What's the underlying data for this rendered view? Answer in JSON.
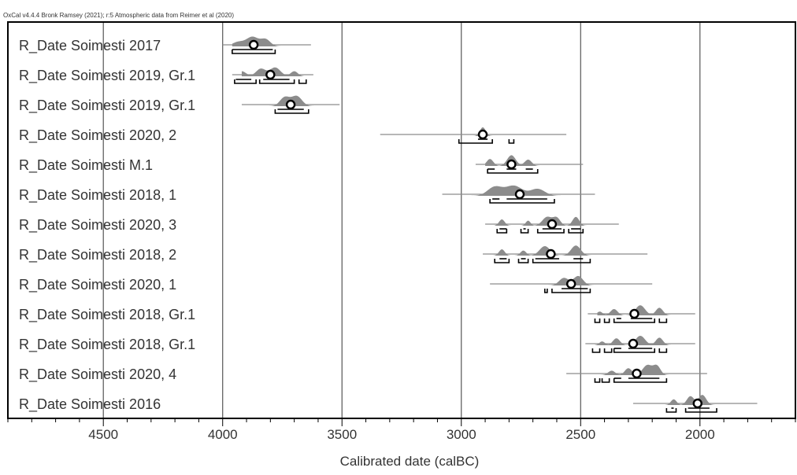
{
  "chart_data": {
    "type": "oxcal-multiplot",
    "credit": "OxCal v4.4.4 Bronk Ramsey (2021); r:5 Atmospheric data from Reimer et al (2020)",
    "xlabel": "Calibrated date (calBC)",
    "xlim": [
      4900,
      1600
    ],
    "x_ticks": [
      4500,
      4000,
      3500,
      3000,
      2500,
      2000
    ],
    "x_minor_step": 100,
    "grid_x": [
      4500,
      4000,
      3500,
      3000,
      2500,
      2000
    ],
    "colors": {
      "distribution": "#8c8c8c",
      "line": "#8c8c8c",
      "bracket": "#000000",
      "grid": "#555555"
    },
    "series": [
      {
        "label": "R_Date Soimesti 2017",
        "range": [
          4000,
          3630
        ],
        "median": 3870,
        "peaks": [
          [
            3935,
            0.35,
            25
          ],
          [
            3875,
            0.75,
            25
          ],
          [
            3820,
            0.55,
            20
          ]
        ],
        "hpd68": [
          [
            3960,
            3790
          ]
        ],
        "hpd95": [
          [
            3960,
            3780
          ]
        ]
      },
      {
        "label": "R_Date Soimesti 2019, Gr.1",
        "range": [
          3960,
          3620
        ],
        "median": 3800,
        "peaks": [
          [
            3920,
            0.4,
            18
          ],
          [
            3840,
            0.6,
            20
          ],
          [
            3780,
            0.7,
            22
          ],
          [
            3700,
            0.4,
            15
          ]
        ],
        "hpd68": [
          [
            3945,
            3880
          ],
          [
            3830,
            3720
          ]
        ],
        "hpd95": [
          [
            3950,
            3860
          ],
          [
            3845,
            3700
          ],
          [
            3680,
            3650
          ]
        ]
      },
      {
        "label": "R_Date Soimesti 2019, Gr.1",
        "range": [
          3920,
          3510
        ],
        "median": 3715,
        "peaks": [
          [
            3740,
            0.7,
            20
          ],
          [
            3690,
            0.8,
            22
          ]
        ],
        "hpd68": [
          [
            3770,
            3660
          ]
        ],
        "hpd95": [
          [
            3780,
            3640
          ]
        ]
      },
      {
        "label": "R_Date Soimesti 2020, 2",
        "range": [
          3340,
          2560
        ],
        "median": 2910,
        "peaks": [
          [
            2910,
            0.7,
            12
          ]
        ],
        "hpd68": [
          [
            2930,
            2890
          ]
        ],
        "hpd95": [
          [
            3010,
            2870
          ],
          [
            2800,
            2780
          ]
        ]
      },
      {
        "label": "R_Date Soimesti M.1",
        "range": [
          2940,
          2490
        ],
        "median": 2790,
        "peaks": [
          [
            2880,
            0.55,
            14
          ],
          [
            2790,
            0.85,
            18
          ],
          [
            2720,
            0.5,
            15
          ]
        ],
        "hpd68": [
          [
            2890,
            2860
          ],
          [
            2810,
            2770
          ],
          [
            2730,
            2700
          ]
        ],
        "hpd95": [
          [
            2890,
            2680
          ]
        ]
      },
      {
        "label": "R_Date Soimesti 2018, 1",
        "range": [
          3080,
          2440
        ],
        "median": 2755,
        "peaks": [
          [
            2860,
            0.7,
            30
          ],
          [
            2780,
            0.8,
            35
          ],
          [
            2680,
            0.55,
            30
          ]
        ],
        "hpd68": [
          [
            2870,
            2840
          ],
          [
            2810,
            2640
          ]
        ],
        "hpd95": [
          [
            2880,
            2610
          ]
        ]
      },
      {
        "label": "R_Date Soimesti 2020, 3",
        "range": [
          2900,
          2340
        ],
        "median": 2620,
        "peaks": [
          [
            2830,
            0.5,
            12
          ],
          [
            2720,
            0.4,
            10
          ],
          [
            2640,
            0.7,
            20
          ],
          [
            2600,
            0.6,
            15
          ],
          [
            2520,
            0.7,
            14
          ]
        ],
        "hpd68": [
          [
            2840,
            2810
          ],
          [
            2740,
            2730
          ],
          [
            2660,
            2580
          ],
          [
            2540,
            2500
          ]
        ],
        "hpd95": [
          [
            2850,
            2810
          ],
          [
            2750,
            2720
          ],
          [
            2680,
            2570
          ],
          [
            2550,
            2490
          ]
        ]
      },
      {
        "label": "R_Date Soimesti 2018, 2",
        "range": [
          2910,
          2220
        ],
        "median": 2625,
        "peaks": [
          [
            2830,
            0.5,
            12
          ],
          [
            2740,
            0.4,
            12
          ],
          [
            2650,
            0.75,
            22
          ],
          [
            2520,
            0.8,
            20
          ]
        ],
        "hpd68": [
          [
            2840,
            2810
          ],
          [
            2750,
            2730
          ],
          [
            2690,
            2590
          ],
          [
            2530,
            2490
          ]
        ],
        "hpd95": [
          [
            2860,
            2800
          ],
          [
            2760,
            2720
          ],
          [
            2700,
            2460
          ]
        ]
      },
      {
        "label": "R_Date Soimesti 2020, 1",
        "range": [
          2880,
          2200
        ],
        "median": 2540,
        "peaks": [
          [
            2570,
            0.6,
            20
          ],
          [
            2510,
            0.75,
            20
          ]
        ],
        "hpd68": [
          [
            2580,
            2470
          ]
        ],
        "hpd95": [
          [
            2650,
            2640
          ],
          [
            2620,
            2460
          ]
        ]
      },
      {
        "label": "R_Date Soimesti 2018, Gr.1",
        "range": [
          2470,
          2020
        ],
        "median": 2275,
        "peaks": [
          [
            2420,
            0.3,
            12
          ],
          [
            2360,
            0.5,
            15
          ],
          [
            2250,
            0.8,
            20
          ],
          [
            2170,
            0.6,
            15
          ]
        ],
        "hpd68": [
          [
            2350,
            2330
          ],
          [
            2290,
            2200
          ]
        ],
        "hpd95": [
          [
            2440,
            2420
          ],
          [
            2400,
            2380
          ],
          [
            2360,
            2190
          ],
          [
            2170,
            2140
          ]
        ]
      },
      {
        "label": "R_Date Soimesti 2018, Gr.1",
        "range": [
          2480,
          2020
        ],
        "median": 2280,
        "peaks": [
          [
            2410,
            0.3,
            12
          ],
          [
            2350,
            0.55,
            15
          ],
          [
            2250,
            0.75,
            20
          ],
          [
            2170,
            0.6,
            15
          ]
        ],
        "hpd68": [
          [
            2360,
            2330
          ],
          [
            2300,
            2200
          ]
        ],
        "hpd95": [
          [
            2450,
            2420
          ],
          [
            2400,
            2370
          ],
          [
            2360,
            2190
          ],
          [
            2170,
            2140
          ]
        ]
      },
      {
        "label": "R_Date Soimesti 2020, 4",
        "range": [
          2560,
          1970
        ],
        "median": 2265,
        "peaks": [
          [
            2370,
            0.35,
            15
          ],
          [
            2300,
            0.55,
            15
          ],
          [
            2220,
            0.8,
            20
          ],
          [
            2180,
            0.7,
            15
          ]
        ],
        "hpd68": [
          [
            2360,
            2330
          ],
          [
            2300,
            2170
          ]
        ],
        "hpd95": [
          [
            2440,
            2420
          ],
          [
            2410,
            2380
          ],
          [
            2360,
            2140
          ]
        ]
      },
      {
        "label": "R_Date Soimesti 2016",
        "range": [
          2280,
          1760
        ],
        "median": 2010,
        "peaks": [
          [
            2110,
            0.45,
            12
          ],
          [
            2040,
            0.7,
            15
          ],
          [
            1990,
            0.8,
            16
          ]
        ],
        "hpd68": [
          [
            2120,
            2110
          ],
          [
            2050,
            1960
          ]
        ],
        "hpd95": [
          [
            2140,
            2100
          ],
          [
            2060,
            1930
          ]
        ]
      }
    ]
  }
}
